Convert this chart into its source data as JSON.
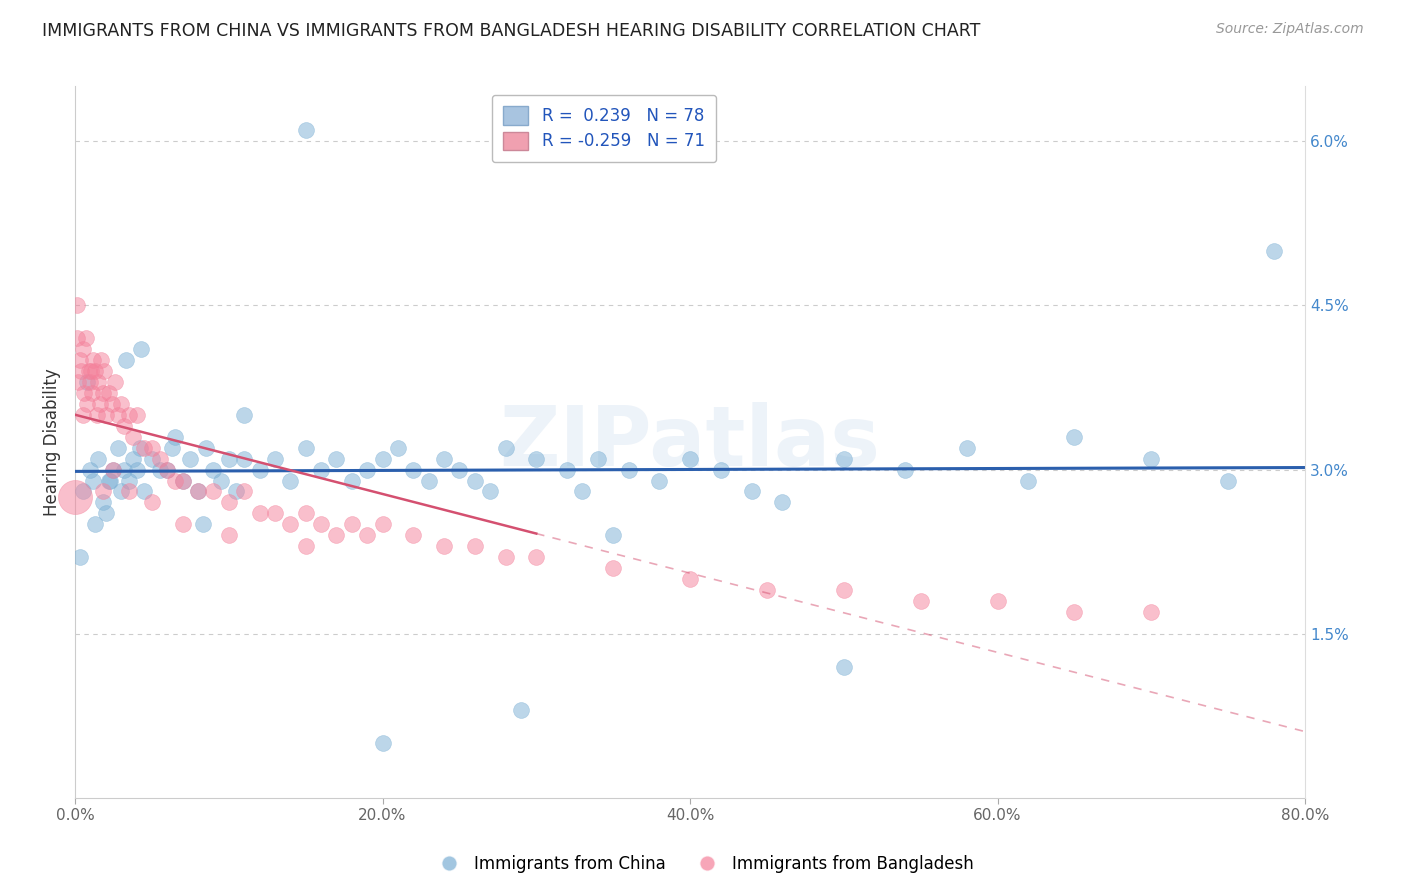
{
  "title": "IMMIGRANTS FROM CHINA VS IMMIGRANTS FROM BANGLADESH HEARING DISABILITY CORRELATION CHART",
  "source": "Source: ZipAtlas.com",
  "ylabel": "Hearing Disability",
  "ytick_vals": [
    1.5,
    3.0,
    4.5,
    6.0
  ],
  "ytick_labels": [
    "1.5%",
    "3.0%",
    "4.5%",
    "6.0%"
  ],
  "xtick_vals": [
    0,
    20,
    40,
    60,
    80
  ],
  "xtick_labels": [
    "0.0%",
    "20.0%",
    "40.0%",
    "60.0%",
    "80.0%"
  ],
  "series1_name": "Immigrants from China",
  "series2_name": "Immigrants from Bangladesh",
  "series1_color": "#7bafd4",
  "series2_color": "#f4809a",
  "line1_color": "#2b5fad",
  "line2_color": "#d45070",
  "xmin": 0.0,
  "xmax": 80.0,
  "ymin": 0.0,
  "ymax": 6.5,
  "background_color": "#ffffff",
  "grid_color": "#cccccc",
  "legend_label1": "R =  0.239   N = 78",
  "legend_label2": "R = -0.259   N = 71",
  "legend_patch1_color": "#a8c4e0",
  "legend_patch2_color": "#f0a0b0",
  "china_x": [
    0.5,
    1.0,
    1.2,
    1.5,
    1.8,
    2.0,
    2.2,
    2.5,
    2.8,
    3.0,
    3.2,
    3.5,
    3.8,
    4.0,
    4.2,
    4.5,
    5.0,
    5.5,
    6.0,
    6.5,
    7.0,
    7.5,
    8.0,
    8.5,
    9.0,
    9.5,
    10.0,
    10.5,
    11.0,
    12.0,
    13.0,
    14.0,
    15.0,
    16.0,
    17.0,
    18.0,
    19.0,
    20.0,
    21.0,
    22.0,
    23.0,
    24.0,
    25.0,
    26.0,
    27.0,
    28.0,
    30.0,
    32.0,
    33.0,
    34.0,
    36.0,
    38.0,
    40.0,
    42.0,
    44.0,
    46.0,
    50.0,
    54.0,
    58.0,
    62.0,
    65.0,
    70.0,
    75.0,
    78.0,
    0.3,
    0.8,
    1.3,
    2.3,
    3.3,
    4.3,
    6.3,
    8.3,
    11.0,
    15.0,
    29.0,
    35.0,
    50.0,
    20.0
  ],
  "china_y": [
    2.8,
    3.0,
    2.9,
    3.1,
    2.7,
    2.6,
    2.9,
    3.0,
    3.2,
    2.8,
    3.0,
    2.9,
    3.1,
    3.0,
    3.2,
    2.8,
    3.1,
    3.0,
    3.0,
    3.3,
    2.9,
    3.1,
    2.8,
    3.2,
    3.0,
    2.9,
    3.1,
    2.8,
    3.1,
    3.0,
    3.1,
    2.9,
    3.2,
    3.0,
    3.1,
    2.9,
    3.0,
    3.1,
    3.2,
    3.0,
    2.9,
    3.1,
    3.0,
    2.9,
    2.8,
    3.2,
    3.1,
    3.0,
    2.8,
    3.1,
    3.0,
    2.9,
    3.1,
    3.0,
    2.8,
    2.7,
    3.1,
    3.0,
    3.2,
    2.9,
    3.3,
    3.1,
    2.9,
    5.0,
    2.2,
    3.8,
    2.5,
    2.9,
    4.0,
    4.1,
    3.2,
    2.5,
    3.5,
    6.1,
    0.8,
    2.4,
    1.2,
    0.5
  ],
  "bang_x": [
    0.1,
    0.2,
    0.3,
    0.4,
    0.5,
    0.6,
    0.7,
    0.8,
    0.9,
    1.0,
    1.1,
    1.2,
    1.3,
    1.4,
    1.5,
    1.6,
    1.7,
    1.8,
    1.9,
    2.0,
    2.2,
    2.4,
    2.6,
    2.8,
    3.0,
    3.2,
    3.5,
    3.8,
    4.0,
    4.5,
    5.0,
    5.5,
    6.0,
    6.5,
    7.0,
    8.0,
    9.0,
    10.0,
    11.0,
    12.0,
    13.0,
    14.0,
    15.0,
    16.0,
    17.0,
    18.0,
    19.0,
    20.0,
    22.0,
    24.0,
    26.0,
    28.0,
    30.0,
    35.0,
    40.0,
    45.0,
    50.0,
    55.0,
    60.0,
    65.0,
    70.0,
    0.15,
    0.55,
    1.05,
    1.8,
    2.5,
    3.5,
    5.0,
    7.0,
    10.0,
    15.0
  ],
  "bang_y": [
    4.2,
    3.8,
    4.0,
    3.9,
    4.1,
    3.7,
    4.2,
    3.6,
    3.9,
    3.8,
    3.7,
    4.0,
    3.9,
    3.5,
    3.8,
    3.6,
    4.0,
    3.7,
    3.9,
    3.5,
    3.7,
    3.6,
    3.8,
    3.5,
    3.6,
    3.4,
    3.5,
    3.3,
    3.5,
    3.2,
    3.2,
    3.1,
    3.0,
    2.9,
    2.9,
    2.8,
    2.8,
    2.7,
    2.8,
    2.6,
    2.6,
    2.5,
    2.6,
    2.5,
    2.4,
    2.5,
    2.4,
    2.5,
    2.4,
    2.3,
    2.3,
    2.2,
    2.2,
    2.1,
    2.0,
    1.9,
    1.9,
    1.8,
    1.8,
    1.7,
    1.7,
    4.5,
    3.5,
    3.9,
    2.8,
    3.0,
    2.8,
    2.7,
    2.5,
    2.4,
    2.3
  ],
  "big_dot_x": 0.0,
  "big_dot_y": 2.75,
  "big_dot_size": 600
}
